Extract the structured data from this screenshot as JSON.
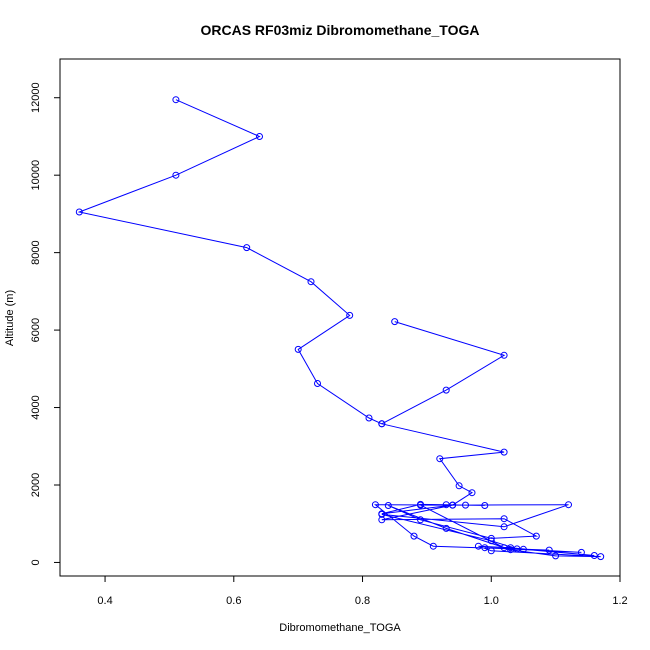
{
  "chart_data": {
    "type": "line",
    "title": "ORCAS RF03miz Dibromomethane_TOGA",
    "xlabel": "Dibromomethane_TOGA",
    "ylabel": "Altitude (m)",
    "xlim": [
      0.33,
      1.2
    ],
    "ylim": [
      -350,
      13000
    ],
    "xticks": [
      0.4,
      0.6,
      0.8,
      1.0,
      1.2
    ],
    "xtick_labels": [
      "0.4",
      "0.6",
      "0.8",
      "1.0",
      "1.2"
    ],
    "yticks": [
      0,
      2000,
      4000,
      6000,
      8000,
      10000,
      12000
    ],
    "ytick_labels": [
      "0",
      "2000",
      "4000",
      "6000",
      "8000",
      "10000",
      "12000"
    ],
    "marker": "open-circle",
    "color": "#0000ff",
    "grid": false,
    "series": [
      {
        "x": [
          0.51,
          0.64,
          0.51,
          0.36,
          0.62,
          0.72,
          0.78,
          0.7,
          0.73,
          0.81,
          0.83,
          0.93,
          1.02,
          0.85
        ],
        "y": [
          11950,
          11000,
          10000,
          9050,
          8130,
          7250,
          6380,
          5500,
          4620,
          3730,
          3580,
          4450,
          5350,
          6220
        ]
      },
      {
        "x": [
          0.83,
          1.02,
          0.92,
          0.95,
          0.97,
          0.94,
          0.83,
          1.02,
          1.07,
          1.0,
          0.89,
          0.84,
          0.93,
          1.03,
          1.1,
          1.17,
          1.0,
          0.98,
          1.03,
          1.16,
          1.05,
          1.14,
          0.99,
          1.09,
          0.91,
          0.88,
          0.82,
          0.96,
          1.12,
          1.02,
          0.83,
          1.0,
          1.04,
          1.02,
          0.89,
          0.94,
          0.83,
          0.89,
          0.93,
          0.99
        ],
        "y": [
          3580,
          2850,
          2680,
          1980,
          1800,
          1480,
          1100,
          1130,
          680,
          620,
          1100,
          1470,
          880,
          330,
          170,
          150,
          300,
          420,
          380,
          180,
          340,
          260,
          380,
          320,
          420,
          680,
          1490,
          1480,
          1490,
          920,
          1240,
          560,
          350,
          380,
          1480,
          1480,
          1260,
          1500,
          1490,
          1470
        ]
      }
    ]
  }
}
